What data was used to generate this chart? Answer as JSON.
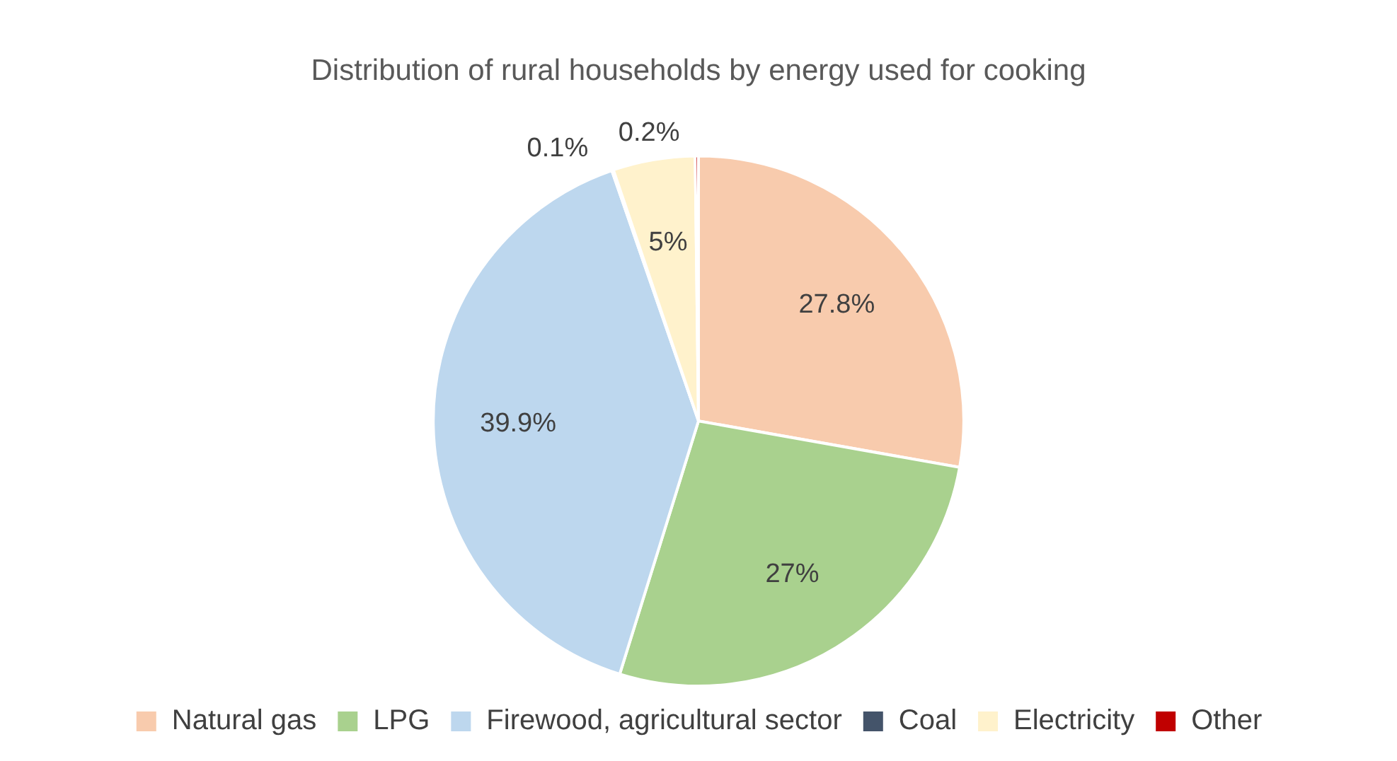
{
  "chart_data": {
    "type": "pie",
    "title": "Distribution of rural households by energy used for cooking",
    "categories": [
      "Natural gas",
      "LPG",
      "Firewood, agricultural sector",
      "Coal",
      "Electricity",
      "Other"
    ],
    "values": [
      27.8,
      27,
      39.9,
      0.1,
      5,
      0.2
    ],
    "colors": [
      "#f8cbad",
      "#a9d18e",
      "#bdd7ee",
      "#44546a",
      "#fff2cc",
      "#c00000"
    ],
    "value_labels": [
      "27.8%",
      "27%",
      "39.9%",
      "0.1%",
      "5%",
      "0.2%"
    ],
    "legend": "bottom"
  }
}
